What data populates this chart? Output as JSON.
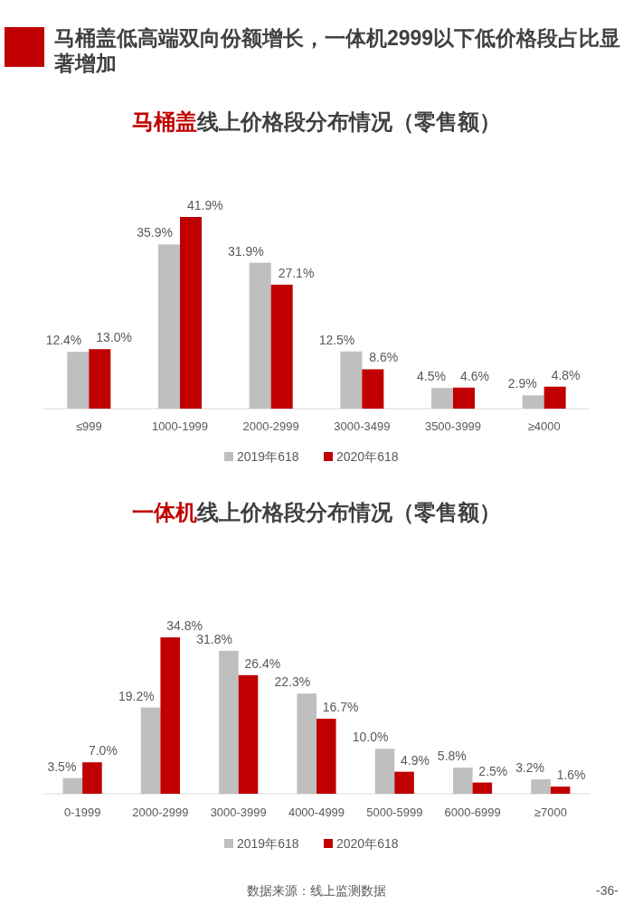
{
  "chart_data": [
    {
      "type": "bar",
      "title": "**马桶盖**线上价格段分布情况（零售额）",
      "annotations": [
        "马桶盖低高端双向份额增长，一体机2999以下低价格段占比显著增加"
      ],
      "categories": [
        "≤999",
        "1000-1999",
        "2000-2999",
        "3000-3499",
        "3500-3999",
        "≥4000"
      ],
      "series": [
        {
          "name": "2019年618",
          "color": "#bfbfbf",
          "values": [
            12.4,
            35.9,
            31.9,
            12.5,
            4.5,
            2.9
          ],
          "value_labels": [
            "12.4%",
            "35.9%",
            "31.9%",
            "12.5%",
            "4.5%",
            "2.9%"
          ]
        },
        {
          "name": "2020年618",
          "color": "#c00000",
          "values": [
            13.0,
            41.9,
            27.1,
            8.6,
            4.6,
            4.8
          ],
          "value_labels": [
            "13.0%",
            "41.9%",
            "27.1%",
            "8.6%",
            "4.6%",
            "4.8%"
          ]
        }
      ],
      "legend": "bottom"
    },
    {
      "type": "bar",
      "title": "**一体机**线上价格段分布情况（零售额）",
      "annotations": [
        "数据来源：线上监测数据",
        "-36-"
      ],
      "categories": [
        "0-1999",
        "2000-2999",
        "3000-3999",
        "4000-4999",
        "5000-5999",
        "6000-6999",
        "≥7000"
      ],
      "series": [
        {
          "name": "2019年618",
          "color": "#bfbfbf",
          "values": [
            3.5,
            19.2,
            31.8,
            22.3,
            10.0,
            5.8,
            3.2
          ],
          "value_labels": [
            "3.5%",
            "19.2%",
            "31.8%",
            "22.3%",
            "10.0%",
            "5.8%",
            "3.2%"
          ]
        },
        {
          "name": "2020年618",
          "color": "#c00000",
          "values": [
            7.0,
            34.8,
            26.4,
            16.7,
            4.9,
            2.5,
            1.6
          ],
          "value_labels": [
            "7.0%",
            "34.8%",
            "26.4%",
            "16.7%",
            "4.9%",
            "2.5%",
            "1.6%"
          ]
        }
      ],
      "legend": "bottom"
    }
  ]
}
